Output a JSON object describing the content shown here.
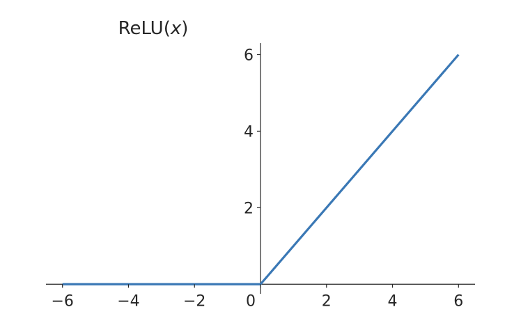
{
  "chart_data": {
    "type": "line",
    "title": "ReLU(x)",
    "title_parts": {
      "prefix": "ReLU(",
      "var": "x",
      "suffix": ")"
    },
    "xlabel": "",
    "ylabel": "",
    "x": [
      -6,
      0,
      6
    ],
    "series": [
      {
        "values": [
          0,
          0,
          6
        ],
        "color": "#3a78b5"
      }
    ],
    "xlim": [
      -6.5,
      6.5
    ],
    "ylim": [
      -0.25,
      6.3
    ],
    "x_ticks": [
      -6,
      -4,
      -2,
      0,
      2,
      4,
      6
    ],
    "x_tick_labels": [
      "−6",
      "−4",
      "−2",
      "0",
      "2",
      "4",
      "6"
    ],
    "y_ticks": [
      2,
      4,
      6
    ],
    "y_tick_labels": [
      "2",
      "4",
      "6"
    ],
    "grid": false,
    "spines": "centered"
  }
}
